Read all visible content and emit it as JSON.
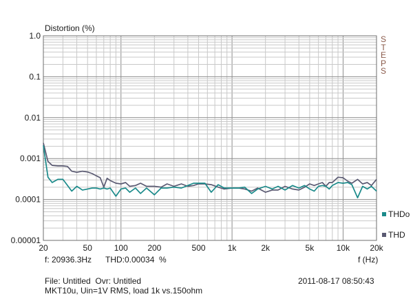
{
  "chart_data": {
    "type": "line",
    "ylabel": "Distortion (%)",
    "xlabel": "f (Hz)",
    "x_scale": "log",
    "y_scale": "log",
    "xlim": [
      20,
      20000
    ],
    "ylim": [
      1e-05,
      1
    ],
    "x_ticks": [
      {
        "v": 20,
        "label": "20"
      },
      {
        "v": 50,
        "label": "50"
      },
      {
        "v": 100,
        "label": "100"
      },
      {
        "v": 200,
        "label": "200"
      },
      {
        "v": 500,
        "label": "500"
      },
      {
        "v": 1000,
        "label": "1k"
      },
      {
        "v": 2000,
        "label": "2k"
      },
      {
        "v": 5000,
        "label": "5k"
      },
      {
        "v": 10000,
        "label": "10k"
      },
      {
        "v": 20000,
        "label": "20k"
      }
    ],
    "y_ticks": [
      {
        "v": 1,
        "label": "1.0"
      },
      {
        "v": 0.1,
        "label": "0.1"
      },
      {
        "v": 0.01,
        "label": "0.01"
      },
      {
        "v": 0.001,
        "label": "0.001"
      },
      {
        "v": 0.0001,
        "label": "0.0001"
      },
      {
        "v": 1e-05,
        "label": "0.00001"
      }
    ],
    "grid": true,
    "legend_position": "right",
    "series": [
      {
        "name": "THD",
        "color": "#5a5a72",
        "x": [
          20,
          22,
          24,
          27,
          30,
          33,
          36,
          40,
          45,
          50,
          55,
          60,
          65,
          70,
          75,
          80,
          90,
          100,
          110,
          120,
          135,
          150,
          170,
          200,
          230,
          260,
          300,
          350,
          400,
          450,
          500,
          570,
          650,
          750,
          850,
          1000,
          1150,
          1300,
          1500,
          1700,
          2000,
          2300,
          2600,
          3000,
          3500,
          4000,
          4500,
          5000,
          5500,
          6000,
          6500,
          7000,
          7500,
          8000,
          9000,
          10000,
          11000,
          12000,
          13500,
          15000,
          16500,
          18000,
          20000
        ],
        "y": [
          0.0024,
          0.00085,
          0.00068,
          0.00066,
          0.00066,
          0.00064,
          0.00049,
          0.00046,
          0.00049,
          0.00047,
          0.00043,
          0.00038,
          0.00034,
          0.0002,
          0.00033,
          0.00029,
          0.00025,
          0.00024,
          0.00026,
          0.00021,
          0.00022,
          0.00025,
          0.00021,
          0.00021,
          0.0002,
          0.00024,
          0.00021,
          0.00024,
          0.00021,
          0.00022,
          0.00024,
          0.00024,
          0.00023,
          0.0002,
          0.00018,
          0.00019,
          0.00019,
          0.00018,
          0.00016,
          0.00019,
          0.00015,
          0.00017,
          0.00017,
          0.00021,
          0.00018,
          0.00017,
          0.0002,
          0.00024,
          0.00022,
          0.00024,
          0.00026,
          0.00021,
          0.00026,
          0.00026,
          0.00035,
          0.00034,
          0.00028,
          0.00025,
          0.00031,
          0.00024,
          0.00026,
          0.00022,
          0.00031
        ]
      },
      {
        "name": "THDo",
        "color": "#1a8a8a",
        "x": [
          20,
          22,
          24,
          27,
          30,
          33,
          36,
          40,
          45,
          50,
          55,
          60,
          65,
          70,
          75,
          80,
          90,
          100,
          110,
          120,
          135,
          150,
          170,
          200,
          230,
          260,
          300,
          350,
          400,
          450,
          500,
          570,
          650,
          750,
          850,
          1000,
          1150,
          1300,
          1500,
          1700,
          2000,
          2300,
          2600,
          3000,
          3500,
          4000,
          4500,
          5000,
          5500,
          6000,
          6500,
          7000,
          7500,
          8000,
          9000,
          10000,
          11000,
          12000,
          13500,
          15000,
          16500,
          18000,
          20000
        ],
        "y": [
          0.0021,
          0.00035,
          0.00026,
          0.00031,
          0.00031,
          0.00022,
          0.00016,
          0.00021,
          0.00017,
          0.00018,
          0.00019,
          0.00019,
          0.00018,
          0.00019,
          0.00018,
          0.00019,
          0.00012,
          0.00018,
          0.00019,
          0.00015,
          0.00019,
          0.00014,
          0.00019,
          0.00013,
          0.00019,
          0.00019,
          0.0002,
          0.00019,
          0.00022,
          0.00025,
          0.00025,
          0.00025,
          0.00015,
          0.00023,
          0.00019,
          0.00019,
          0.00019,
          0.0002,
          0.00014,
          0.00018,
          0.00021,
          0.00018,
          0.00021,
          0.00017,
          0.00022,
          0.00019,
          0.00022,
          0.00018,
          0.00016,
          0.00021,
          0.00022,
          0.00021,
          0.00018,
          0.00022,
          0.00026,
          0.00025,
          0.00026,
          0.00023,
          0.00011,
          0.00021,
          0.00018,
          0.00021,
          0.00016
        ]
      }
    ]
  },
  "panel": {
    "steps_label": "STEPS",
    "cursor_freq": "f: 20936.3Hz",
    "cursor_thd": "THD:0.00034  %",
    "file_line": "File: Untitled  Ovr: Untitled",
    "timestamp": "2011-08-17 08:50:43",
    "description": "MKT10u, Uin=1V RMS, load 1k vs.150ohm"
  }
}
